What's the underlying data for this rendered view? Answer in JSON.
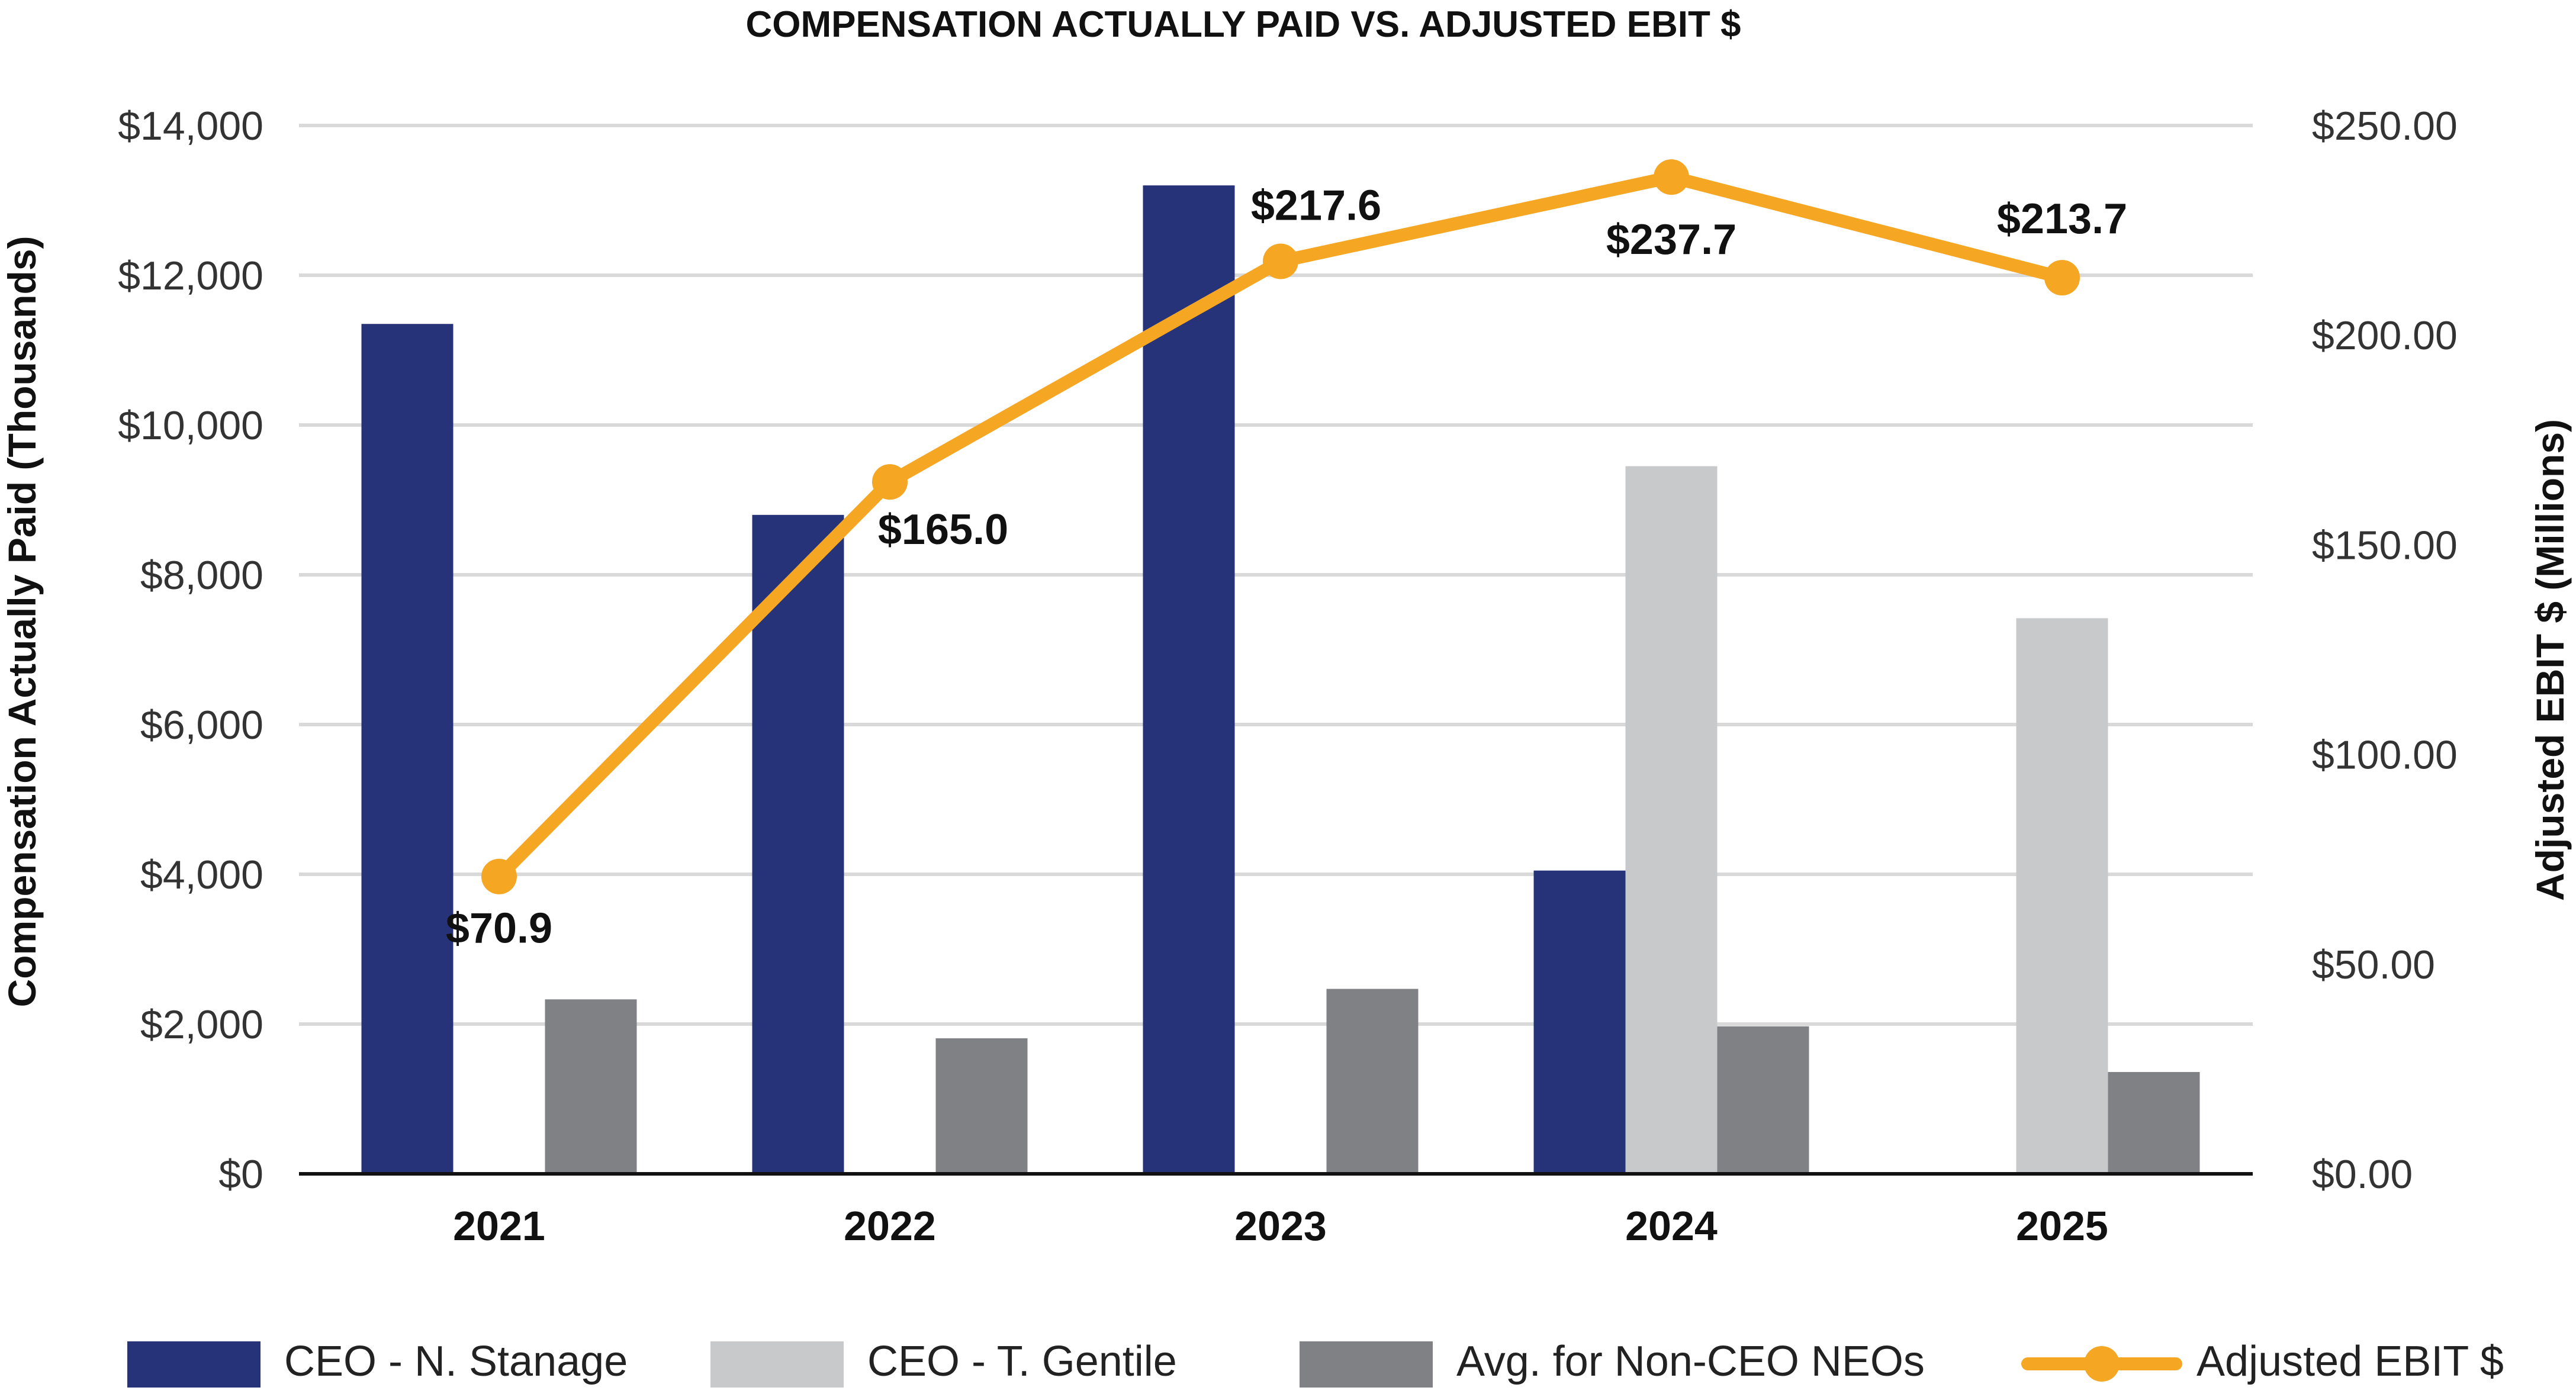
{
  "chart_data": {
    "type": "bar",
    "title": "COMPENSATION ACTUALLY PAID VS. ADJUSTED EBIT $",
    "categories": [
      "2021",
      "2022",
      "2023",
      "2024",
      "2025"
    ],
    "ylabel": "Compensation Actually Paid (Thousands)",
    "y2label": "Adjusted EBIT $ (Millions)",
    "ylim": [
      0,
      14000
    ],
    "y2lim": [
      0,
      250
    ],
    "yticks": [
      "$0",
      "$2,000",
      "$4,000",
      "$6,000",
      "$8,000",
      "$10,000",
      "$12,000",
      "$14,000"
    ],
    "y2ticks": [
      "$0.00",
      "$50.00",
      "$100.00",
      "$150.00",
      "$200.00",
      "$250.00"
    ],
    "grid": true,
    "legend_position": "bottom",
    "series": [
      {
        "name": "CEO - N. Stanage",
        "type": "bar",
        "axis": "left",
        "color": "#263378",
        "values": [
          11350,
          8800,
          13200,
          4050,
          null
        ]
      },
      {
        "name": "CEO - T. Gentile",
        "type": "bar",
        "axis": "left",
        "color": "#c8c9cb",
        "values": [
          null,
          null,
          null,
          9450,
          7420
        ]
      },
      {
        "name": "Avg. for Non-CEO NEOs",
        "type": "bar",
        "axis": "left",
        "color": "#808184",
        "values": [
          2330,
          1810,
          2470,
          1970,
          1360
        ]
      },
      {
        "name": "Adjusted EBIT $",
        "type": "line",
        "axis": "right",
        "color": "#f5a623",
        "values": [
          70.9,
          165.0,
          217.6,
          237.7,
          213.7
        ],
        "labels": [
          "$70.9",
          "$165.0",
          "$217.6",
          "$237.7",
          "$213.7"
        ]
      }
    ]
  }
}
